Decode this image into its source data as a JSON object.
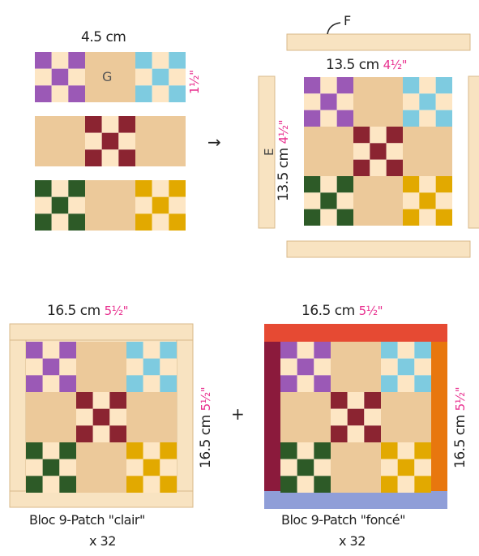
{
  "colors": {
    "tan": "#ecc99a",
    "cream": "#f8e3c1",
    "light": "#fde6c4",
    "purple": "#9b59b6",
    "blue": "#7ecbe0",
    "maroon": "#8b2431",
    "green": "#2d5a27",
    "yellow": "#e2a900",
    "red": "#e64a33",
    "wine": "#8b1a3c",
    "orange": "#e8770e",
    "lavender": "#8f9ed8",
    "magenta": "#e8308f"
  },
  "labels": {
    "strip_width": "4.5 cm",
    "strip_inch": "1½\"",
    "center_g": "G",
    "label_f": "F",
    "label_e": "E",
    "block_cm": "13.5 cm",
    "block_inch": "4½\"",
    "final_cm": "16.5 cm",
    "final_inch": "5½\"",
    "plus": "+",
    "arrow": "→",
    "clair_title": "Bloc 9-Patch \"clair\"",
    "clair_count": "x 32",
    "fonce_title": "Bloc 9-Patch \"foncé\"",
    "fonce_count": "x 32"
  }
}
